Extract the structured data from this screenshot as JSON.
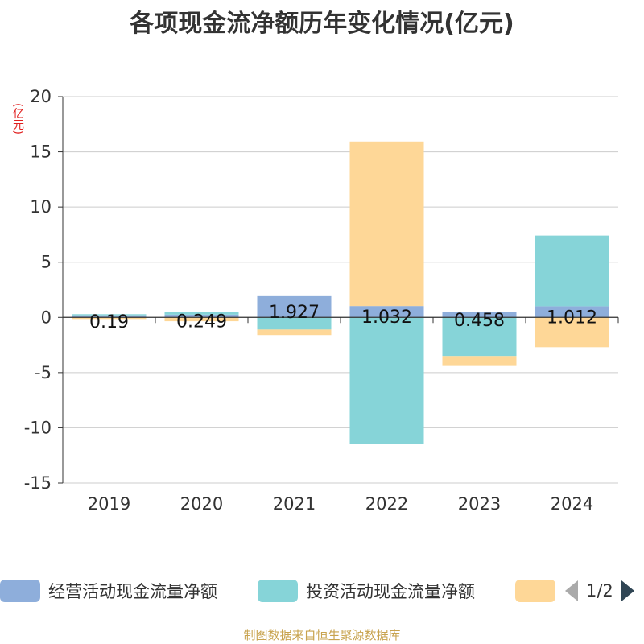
{
  "title": "各项现金流净额历年变化情况(亿元)",
  "unit_label": "(亿元)",
  "chart_data": {
    "type": "bar",
    "stacked": true,
    "categories": [
      "2019",
      "2020",
      "2021",
      "2022",
      "2023",
      "2024"
    ],
    "series": [
      {
        "name": "经营活动现金流量净额",
        "color": "#8eaedb",
        "values": [
          0.19,
          0.249,
          1.927,
          1.032,
          0.458,
          1.012
        ],
        "labels": [
          "0.19",
          "0.249",
          "1.927",
          "1.032",
          "0.458",
          "1.012"
        ]
      },
      {
        "name": "投资活动现金流量净额",
        "color": "#86d4d8",
        "values": [
          0.1,
          0.25,
          -1.1,
          -11.5,
          -3.5,
          6.4
        ]
      },
      {
        "color": "#fed797",
        "values": [
          -0.15,
          -0.35,
          -0.5,
          14.9,
          -0.9,
          -2.7
        ]
      }
    ],
    "yticks": [
      20,
      15,
      10,
      5,
      0,
      -5,
      -10,
      -15
    ],
    "ylim": [
      -15,
      20
    ],
    "grid": true
  },
  "legend": {
    "items": [
      {
        "label": "经营活动现金流量净额",
        "color": "#8eaedb"
      },
      {
        "label": "投资活动现金流量净额",
        "color": "#86d4d8"
      },
      {
        "label": "",
        "color": "#fed797"
      }
    ],
    "page": "1/2"
  },
  "footer": "制图数据来自恒生聚源数据库"
}
